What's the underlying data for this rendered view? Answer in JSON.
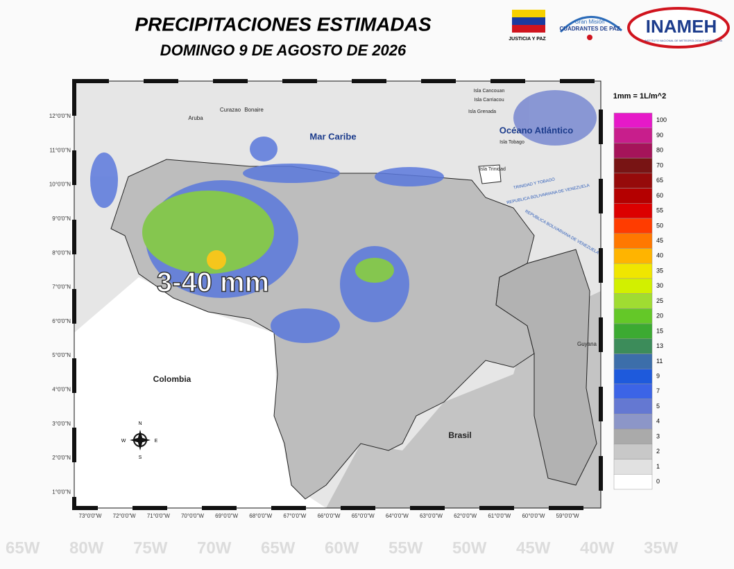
{
  "header": {
    "title": "PRECIPITACIONES ESTIMADAS",
    "subtitle": "DOMINGO 9 DE AGOSTO DE 2026",
    "logos": [
      "JUSTICIA Y PAZ",
      "Gran Misión",
      "CUADRANTES DE PAZ",
      "INAMEH",
      "INSTITUTO NACIONAL DE METEOROLOGIA E HIDROLOGIA"
    ]
  },
  "map": {
    "lat_ticks": [
      "12°0'0\"N",
      "11°0'0\"N",
      "10°0'0\"N",
      "9°0'0\"N",
      "8°0'0\"N",
      "7°0'0\"N",
      "6°0'0\"N",
      "5°0'0\"N",
      "4°0'0\"N",
      "3°0'0\"N",
      "2°0'0\"N",
      "1°0'0\"N"
    ],
    "lon_ticks": [
      "73°0'0\"W",
      "72°0'0\"W",
      "71°0'0\"W",
      "70°0'0\"W",
      "69°0'0\"W",
      "68°0'0\"W",
      "67°0'0\"W",
      "66°0'0\"W",
      "65°0'0\"W",
      "64°0'0\"W",
      "63°0'0\"W",
      "62°0'0\"W",
      "61°0'0\"W",
      "60°0'0\"W",
      "59°0'0\"W"
    ],
    "places": [
      "Aruba",
      "Curazao",
      "Bonaire",
      "Mar Caribe",
      "Isla Cancouan",
      "Isla Carriacou",
      "Isla Grenada",
      "Océano Atlántico",
      "Isla Tobago",
      "Isla Trinidad",
      "TRINIDAD Y TOBAGO",
      "REPUBLICA BOLIVARIANA DE VENEZUELA",
      "REPUBLICA BOLIVARIANA DE VENEZUELA",
      "Guyana",
      "Colombia",
      "Brasil"
    ],
    "annotation": "3-40 mm",
    "compass": [
      "N",
      "S",
      "E",
      "W"
    ]
  },
  "legend": {
    "title": "1mm = 1L/m^2",
    "values": [
      100,
      90,
      80,
      70,
      65,
      60,
      55,
      50,
      45,
      40,
      35,
      30,
      25,
      20,
      15,
      13,
      11,
      9,
      7,
      5,
      4,
      3,
      2,
      1,
      0
    ],
    "colors": [
      "#e619c8",
      "#c81e8c",
      "#a5145a",
      "#781414",
      "#960a0a",
      "#b40000",
      "#dc0000",
      "#ff3c00",
      "#ff7800",
      "#ffb400",
      "#f0e600",
      "#d2f000",
      "#a0dc32",
      "#64c828",
      "#3caa32",
      "#3c8c5a",
      "#3c6eaa",
      "#1e5adc",
      "#3c64e6",
      "#6478d2",
      "#8c96c8",
      "#aaaaaa",
      "#c8c8c8",
      "#e1e1e1",
      "#ffffff"
    ]
  },
  "background": [
    "65W",
    "80W",
    "75W",
    "70W",
    "65W",
    "60W",
    "55W",
    "50W",
    "45W",
    "40W",
    "35W"
  ]
}
